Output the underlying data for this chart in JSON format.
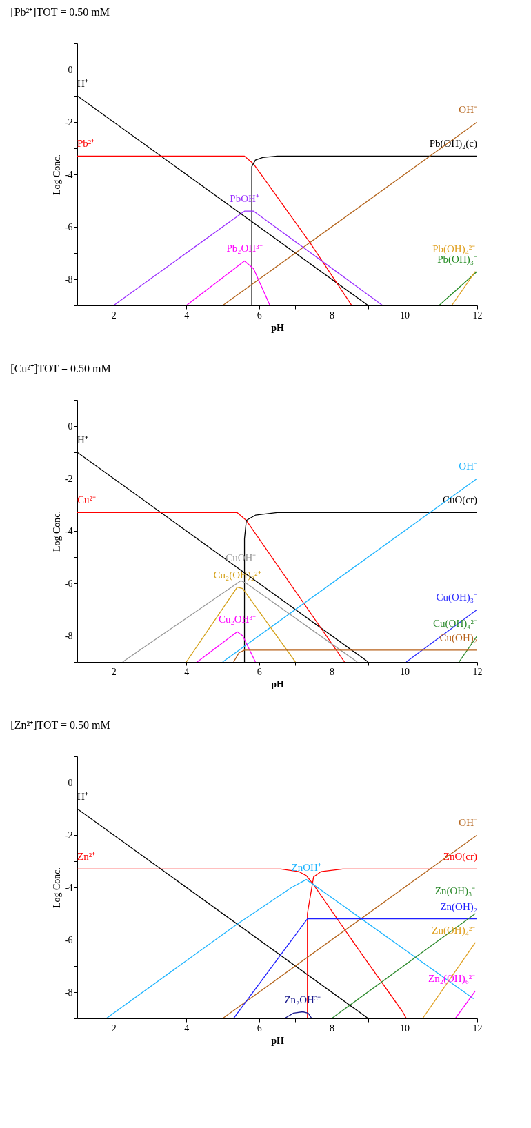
{
  "chart_data": [
    {
      "type": "line",
      "title": "[Pb²⁺]TOT =  0.50 mM",
      "xlabel": "pH",
      "ylabel": "Log Conc.",
      "xlim": [
        1,
        12
      ],
      "ylim": [
        -9,
        1
      ],
      "xticks": [
        2,
        {
          "value": 3,
          "label": null
        },
        4,
        {
          "value": 5,
          "label": null
        },
        6,
        {
          "value": 7,
          "label": null
        },
        8,
        {
          "value": 9,
          "label": null
        },
        10,
        {
          "value": 11,
          "label": null
        },
        12
      ],
      "yticks": [
        {
          "value": -9,
          "label": null
        },
        -8,
        {
          "value": -7,
          "label": null
        },
        -6,
        {
          "value": -5,
          "label": null
        },
        -4,
        {
          "value": -3,
          "label": null
        },
        -2,
        {
          "value": -1,
          "label": null
        },
        0,
        {
          "value": 1,
          "label": null
        }
      ],
      "series": [
        {
          "name": "H⁺",
          "color": "#000000",
          "x": [
            1,
            9
          ],
          "values": [
            -1,
            -9
          ]
        },
        {
          "name": "Pb²⁺",
          "color": "#ff0000",
          "x": [
            1,
            5.6,
            5.85,
            7.4,
            8.55
          ],
          "values": [
            -3.3,
            -3.3,
            -3.6,
            -6.6,
            -9
          ]
        },
        {
          "name": "Pb(OH)₂(c)",
          "color": "#000000",
          "x": [
            5.8,
            5.8,
            5.9,
            6.1,
            6.5,
            12
          ],
          "values": [
            -9,
            -3.7,
            -3.45,
            -3.35,
            -3.3,
            -3.3
          ]
        },
        {
          "name": "OH⁻",
          "color": "#b5651d",
          "x": [
            5,
            12
          ],
          "values": [
            -9,
            -2
          ]
        },
        {
          "name": "PbOH⁺",
          "color": "#9b30ff",
          "x": [
            2,
            5.6,
            5.85,
            9.4
          ],
          "values": [
            -9,
            -5.4,
            -5.4,
            -9
          ]
        },
        {
          "name": "Pb₂OH³⁺",
          "color": "#ff00ff",
          "x": [
            4,
            5.6,
            5.85,
            6.3
          ],
          "values": [
            -9,
            -7.3,
            -7.6,
            -9
          ]
        },
        {
          "name": "Pb(OH)₃⁻",
          "color": "#228b22",
          "x": [
            10.95,
            12
          ],
          "values": [
            -9,
            -7.7
          ]
        },
        {
          "name": "Pb(OH)₄²⁻",
          "color": "#e0a020",
          "x": [
            11.3,
            11.95
          ],
          "values": [
            -9,
            -7.7
          ]
        }
      ]
    },
    {
      "type": "line",
      "title": "[Cu²⁺]TOT =  0.50 mM",
      "xlabel": "pH",
      "ylabel": "Log Conc.",
      "xlim": [
        1,
        12
      ],
      "ylim": [
        -9,
        1
      ],
      "xticks": [
        2,
        {
          "value": 3,
          "label": null
        },
        4,
        {
          "value": 5,
          "label": null
        },
        6,
        {
          "value": 7,
          "label": null
        },
        8,
        {
          "value": 9,
          "label": null
        },
        10,
        {
          "value": 11,
          "label": null
        },
        12
      ],
      "yticks": [
        {
          "value": -9,
          "label": null
        },
        -8,
        {
          "value": -7,
          "label": null
        },
        -6,
        {
          "value": -5,
          "label": null
        },
        -4,
        {
          "value": -3,
          "label": null
        },
        -2,
        {
          "value": -1,
          "label": null
        },
        0,
        {
          "value": 1,
          "label": null
        }
      ],
      "series": [
        {
          "name": "H⁺",
          "color": "#000000",
          "x": [
            1,
            9
          ],
          "values": [
            -1,
            -9
          ]
        },
        {
          "name": "Cu²⁺",
          "color": "#ff0000",
          "x": [
            1,
            5.4,
            5.65,
            8.35
          ],
          "values": [
            -3.3,
            -3.3,
            -3.6,
            -9
          ]
        },
        {
          "name": "CuO(cr)",
          "color": "#000000",
          "x": [
            5.6,
            5.6,
            5.65,
            5.9,
            6.5,
            12
          ],
          "values": [
            -9,
            -4.3,
            -3.6,
            -3.4,
            -3.3,
            -3.3
          ]
        },
        {
          "name": "OH⁻",
          "color": "#1eb4ff",
          "x": [
            5,
            12
          ],
          "values": [
            -9,
            -2
          ]
        },
        {
          "name": "Cu₂(OH)₂²⁺",
          "color": "#d4a017",
          "x": [
            4,
            5.4,
            5.55,
            7
          ],
          "values": [
            -9,
            -6.15,
            -6.2,
            -9
          ]
        },
        {
          "name": "CuOH⁺",
          "color": "#999999",
          "x": [
            2.25,
            5.5,
            5.65,
            8.7
          ],
          "values": [
            -9,
            -5.9,
            -6.0,
            -9
          ]
        },
        {
          "name": "Cu₂OH³⁺",
          "color": "#ff00ff",
          "x": [
            4.3,
            5.4,
            5.55,
            5.9
          ],
          "values": [
            -9,
            -7.85,
            -8.0,
            -9
          ]
        },
        {
          "name": "Cu(OH)₃⁻",
          "color": "#2a2aff",
          "x": [
            10.05,
            12
          ],
          "values": [
            -9,
            -7.0
          ]
        },
        {
          "name": "Cu(OH)₄²⁻",
          "color": "#2e8b2e",
          "x": [
            11.5,
            12
          ],
          "values": [
            -9,
            -8.0
          ]
        },
        {
          "name": "Cu(OH)₂",
          "color": "#b8621b",
          "x": [
            5.3,
            5.45,
            5.6,
            12
          ],
          "values": [
            -9,
            -8.65,
            -8.55,
            -8.55
          ]
        }
      ]
    },
    {
      "type": "line",
      "title": "[Zn²⁺]TOT =  0.50 mM",
      "xlabel": "pH",
      "ylabel": "Log Conc.",
      "xlim": [
        1,
        12
      ],
      "ylim": [
        -9,
        1
      ],
      "xticks": [
        2,
        {
          "value": 3,
          "label": null
        },
        4,
        {
          "value": 5,
          "label": null
        },
        6,
        {
          "value": 7,
          "label": null
        },
        8,
        {
          "value": 9,
          "label": null
        },
        10,
        {
          "value": 11,
          "label": null
        },
        12
      ],
      "yticks": [
        {
          "value": -9,
          "label": null
        },
        -8,
        {
          "value": -7,
          "label": null
        },
        -6,
        {
          "value": -5,
          "label": null
        },
        -4,
        {
          "value": -3,
          "label": null
        },
        -2,
        {
          "value": -1,
          "label": null
        },
        0,
        {
          "value": 1,
          "label": null
        }
      ],
      "series": [
        {
          "name": "H⁺",
          "color": "#000000",
          "x": [
            1,
            9
          ],
          "values": [
            -1,
            -9
          ]
        },
        {
          "name": "Zn²⁺",
          "color": "#ff0000",
          "x": [
            1,
            6.6,
            7.1,
            7.3,
            7.5,
            8.7,
            9.95,
            10.05
          ],
          "values": [
            -3.3,
            -3.3,
            -3.4,
            -3.55,
            -3.9,
            -6.3,
            -8.75,
            -9
          ]
        },
        {
          "name": "ZnO(cr)",
          "color": "#ff0000",
          "x": [
            7.33,
            7.33,
            7.5,
            7.7,
            8.3,
            12
          ],
          "values": [
            -9,
            -5.0,
            -3.6,
            -3.4,
            -3.3,
            -3.3
          ]
        },
        {
          "name": "OH⁻",
          "color": "#b5651d",
          "x": [
            5,
            12
          ],
          "values": [
            -9,
            -2
          ]
        },
        {
          "name": "ZnOH⁺",
          "color": "#1eb4ff",
          "x": [
            1.8,
            5.4,
            6.9,
            7.3,
            11.9
          ],
          "values": [
            -9,
            -5.4,
            -4.0,
            -3.7,
            -8.25
          ]
        },
        {
          "name": "Zn(OH)₂",
          "color": "#2020ff",
          "x": [
            5.3,
            7.33,
            12
          ],
          "values": [
            -9,
            -5.2,
            -5.2
          ]
        },
        {
          "name": "Zn(OH)₃⁻",
          "color": "#2e8b2e",
          "x": [
            8,
            11.95
          ],
          "values": [
            -9,
            -5.0
          ]
        },
        {
          "name": "Zn(OH)₄²⁻",
          "color": "#e0a020",
          "x": [
            10.5,
            11.95
          ],
          "values": [
            -9,
            -6.1
          ]
        },
        {
          "name": "Zn₂(OH)₆²⁻",
          "color": "#ff00ff",
          "x": [
            11.4,
            11.95
          ],
          "values": [
            -9,
            -7.95
          ]
        },
        {
          "name": "Zn₂OH³⁺",
          "color": "#1a1a8c",
          "x": [
            6.7,
            6.95,
            7.2,
            7.35,
            7.45
          ],
          "values": [
            -9,
            -8.8,
            -8.75,
            -8.8,
            -9
          ]
        }
      ]
    }
  ]
}
